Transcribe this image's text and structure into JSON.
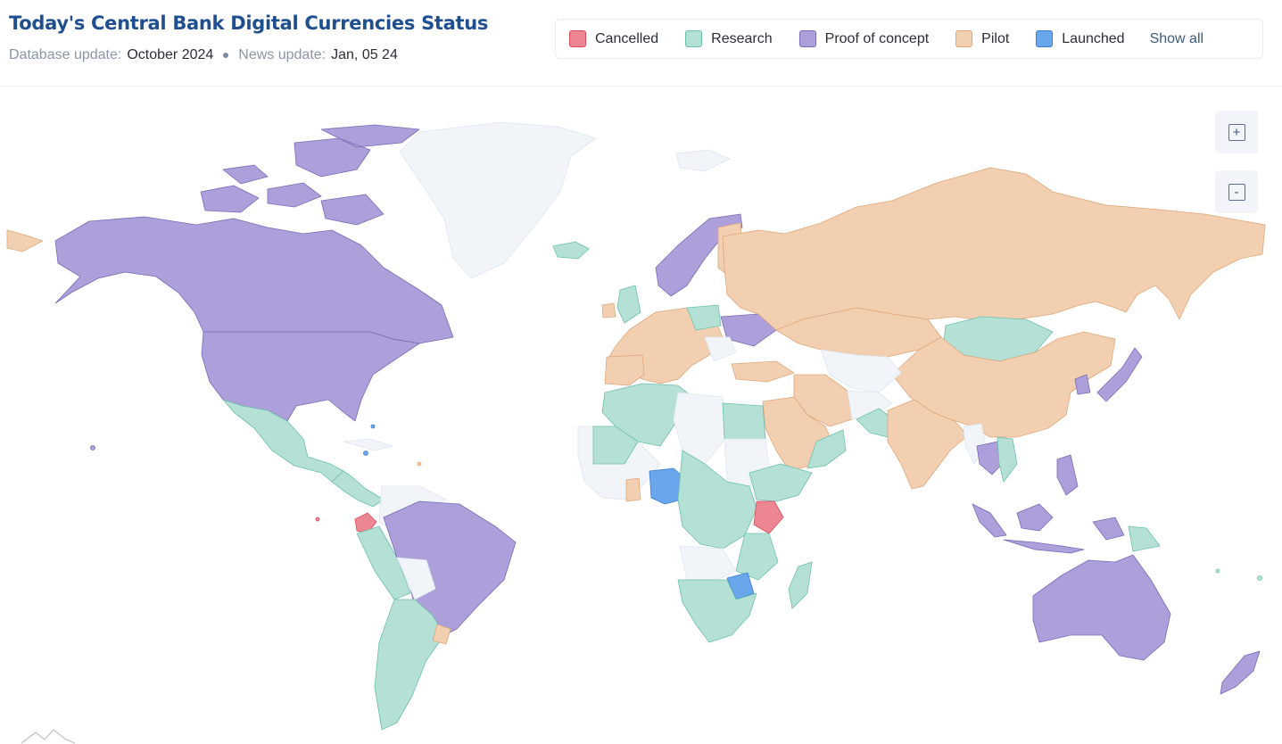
{
  "header": {
    "title": "Today's Central Bank Digital Currencies Status",
    "db_label": "Database update:",
    "db_value": "October 2024",
    "news_label": "News update:",
    "news_value": "Jan, 05 24"
  },
  "legend": {
    "items": [
      {
        "label": "Cancelled",
        "color": "#ec8692",
        "border": "#d94a5c"
      },
      {
        "label": "Research",
        "color": "#b5e0d6",
        "border": "#6cc0ac"
      },
      {
        "label": "Proof of concept",
        "color": "#ac9fda",
        "border": "#7a6bb8"
      },
      {
        "label": "Pilot",
        "color": "#f2cfb1",
        "border": "#e0a77a"
      },
      {
        "label": "Launched",
        "color": "#6aa6ec",
        "border": "#3b7fd0"
      }
    ],
    "show_all": "Show all"
  },
  "zoom": {
    "in": "+",
    "out": "-"
  },
  "colors": {
    "no_data": "#f1f5fa",
    "no_data_border": "#dfe6ef",
    "cancelled": "#ec8692",
    "research": "#b5e0d6",
    "poc": "#ac9fda",
    "pilot": "#f2cfb1",
    "launched": "#6aa6ec"
  }
}
